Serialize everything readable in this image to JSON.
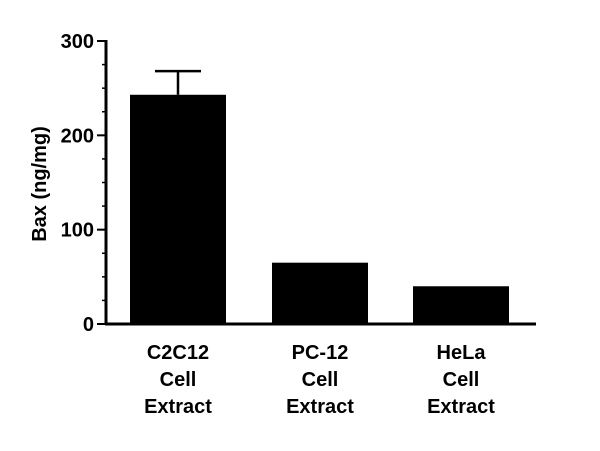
{
  "chart_data": {
    "type": "bar",
    "title": "",
    "xlabel": "",
    "ylabel": "Bax (ng/mg)",
    "ylim": [
      0,
      300
    ],
    "yticks": [
      0,
      100,
      200,
      300
    ],
    "yticks_minor": [
      25,
      50,
      75,
      125,
      150,
      175,
      225,
      250,
      275
    ],
    "grid": false,
    "legend": "none",
    "categories": [
      [
        "C2C12",
        "Cell",
        "Extract"
      ],
      [
        "PC-12",
        "Cell",
        "Extract"
      ],
      [
        "HeLa",
        "Cell",
        "Extract"
      ]
    ],
    "values": [
      243,
      65,
      40
    ],
    "error_bars": [
      25,
      0,
      0
    ],
    "colors": {
      "bar": "#000000",
      "axis": "#000000",
      "background": "#ffffff"
    }
  }
}
